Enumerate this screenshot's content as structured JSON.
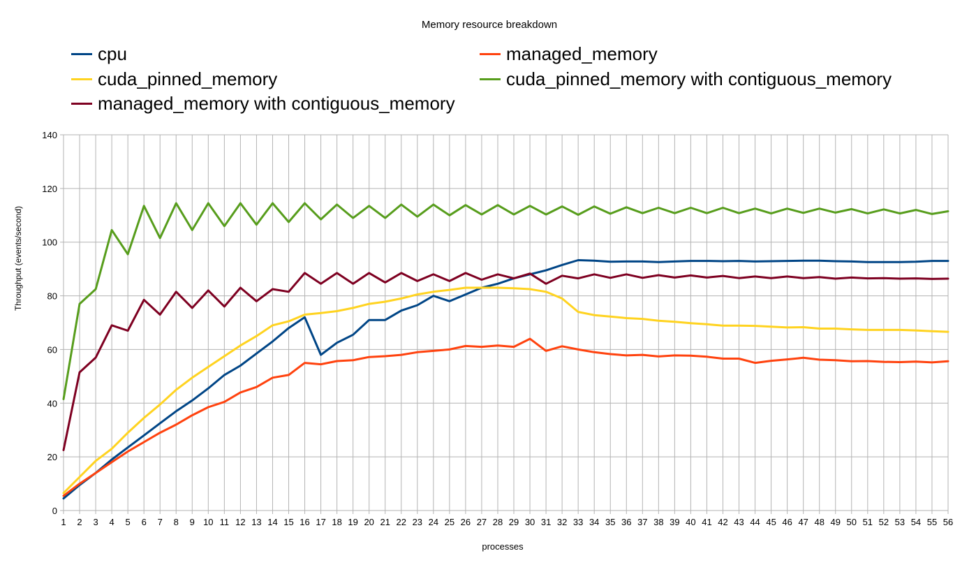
{
  "chart_data": {
    "type": "line",
    "title": "Memory resource breakdown",
    "xlabel": "processes",
    "ylabel": "Throughput (events/second)",
    "ylim": [
      0,
      140
    ],
    "yticks": [
      0,
      20,
      40,
      60,
      80,
      100,
      120,
      140
    ],
    "grid": true,
    "legend_position": "top",
    "x": [
      "1",
      "2",
      "3",
      "4",
      "5",
      "6",
      "7",
      "8",
      "9",
      "10",
      "11",
      "12",
      "13",
      "14",
      "15",
      "16",
      "17",
      "18",
      "19",
      "20",
      "21",
      "22",
      "23",
      "24",
      "25",
      "26",
      "27",
      "28",
      "29",
      "30",
      "31",
      "32",
      "33",
      "34",
      "35",
      "36",
      "37",
      "38",
      "39",
      "40",
      "41",
      "42",
      "43",
      "44",
      "45",
      "46",
      "47",
      "48",
      "49",
      "50",
      "51",
      "52",
      "53",
      "54",
      "55",
      "56"
    ],
    "series": [
      {
        "name": "cpu",
        "color": "#004586",
        "values": [
          4.5,
          9.5,
          14,
          19,
          23.5,
          28,
          32.5,
          37,
          41,
          45.5,
          50.5,
          54,
          58.5,
          63,
          68,
          72,
          58,
          62.5,
          65.5,
          71,
          71,
          74.5,
          76.5,
          80,
          78,
          80.5,
          83,
          84.5,
          86.5,
          88,
          89.5,
          91.5,
          93.3,
          93.1,
          92.7,
          92.8,
          92.8,
          92.6,
          92.8,
          93,
          93,
          92.9,
          93,
          92.8,
          92.9,
          93,
          93.1,
          93.1,
          92.9,
          92.8,
          92.6,
          92.6,
          92.6,
          92.7,
          93,
          93
        ]
      },
      {
        "name": "managed_memory",
        "color": "#ff420e",
        "values": [
          5.5,
          10,
          14,
          18,
          22,
          25.5,
          29,
          32,
          35.5,
          38.5,
          40.5,
          44,
          46,
          49.5,
          50.5,
          55,
          54.5,
          55.7,
          56,
          57.2,
          57.5,
          58,
          59,
          59.5,
          60,
          61.3,
          61,
          61.5,
          61,
          64,
          59.5,
          61.2,
          60,
          59,
          58.3,
          57.8,
          58,
          57.4,
          57.8,
          57.7,
          57.3,
          56.6,
          56.6,
          55,
          55.8,
          56.3,
          56.9,
          56.2,
          56,
          55.6,
          55.7,
          55.4,
          55.3,
          55.5,
          55.2,
          55.6
        ]
      },
      {
        "name": "cuda_pinned_memory",
        "color": "#ffd320",
        "values": [
          6.5,
          12.5,
          18.5,
          23,
          29,
          34.5,
          39.5,
          45,
          49.5,
          53.5,
          57.5,
          61.5,
          65,
          69,
          70.5,
          73,
          73.6,
          74.3,
          75.5,
          77,
          77.8,
          79,
          80.5,
          81.5,
          82.2,
          83,
          83,
          83,
          82.8,
          82.5,
          81.5,
          79,
          74,
          72.8,
          72.3,
          71.7,
          71.4,
          70.7,
          70.3,
          69.8,
          69.4,
          68.9,
          68.9,
          68.8,
          68.5,
          68.2,
          68.3,
          67.8,
          67.8,
          67.5,
          67.3,
          67.3,
          67.3,
          67.1,
          66.8,
          66.6
        ]
      },
      {
        "name": "cuda_pinned_memory with contiguous_memory",
        "color": "#579d1c",
        "values": [
          41.5,
          77,
          82.5,
          104.5,
          95.5,
          113.5,
          101.5,
          114.5,
          104.5,
          114.5,
          106,
          114.5,
          106.5,
          114.5,
          107.5,
          114.5,
          108.5,
          114,
          109,
          113.5,
          109,
          114,
          109.5,
          114,
          110,
          113.8,
          110.3,
          113.8,
          110.3,
          113.5,
          110.3,
          113.3,
          110.2,
          113.3,
          110.6,
          113,
          110.8,
          112.8,
          110.8,
          112.8,
          110.8,
          112.8,
          110.8,
          112.5,
          110.7,
          112.5,
          110.9,
          112.5,
          111,
          112.3,
          110.7,
          112.2,
          110.7,
          112,
          110.5,
          111.5
        ]
      },
      {
        "name": "managed_memory with contiguous_memory",
        "color": "#7e0021",
        "values": [
          22.5,
          51.5,
          57,
          69,
          67,
          78.5,
          73,
          81.5,
          75.5,
          82,
          76,
          83,
          78,
          82.5,
          81.5,
          88.5,
          84.5,
          88.5,
          84.5,
          88.5,
          85,
          88.5,
          85.5,
          88,
          85.5,
          88.5,
          86,
          88,
          86.5,
          88.3,
          84.5,
          87.5,
          86.5,
          88,
          86.7,
          88,
          86.7,
          87.7,
          86.8,
          87.6,
          86.8,
          87.4,
          86.6,
          87.2,
          86.6,
          87.2,
          86.6,
          87,
          86.4,
          86.8,
          86.5,
          86.6,
          86.4,
          86.5,
          86.3,
          86.4
        ]
      }
    ]
  }
}
